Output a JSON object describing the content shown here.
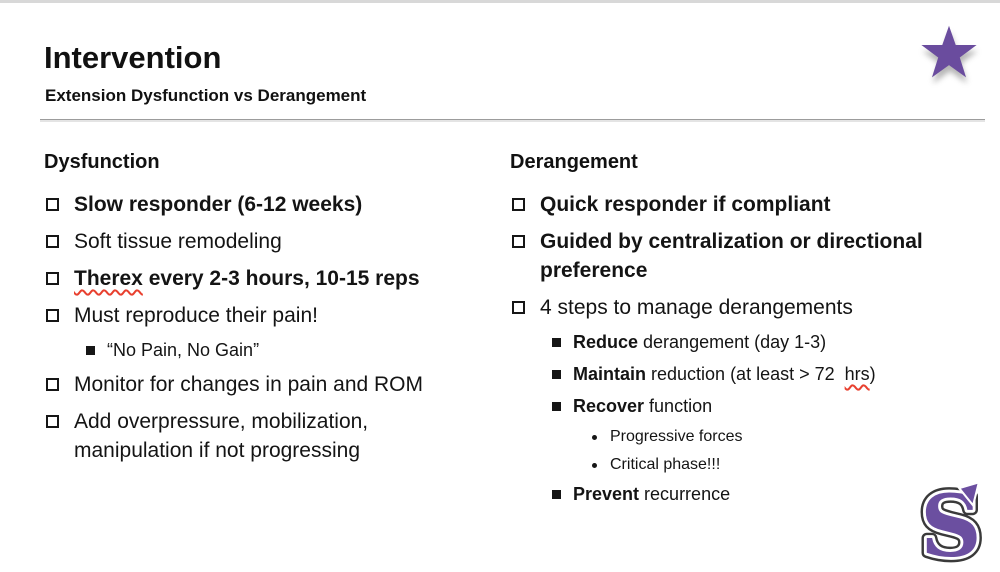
{
  "slide": {
    "title": "Intervention",
    "subtitle": "Extension Dysfunction vs Derangement"
  },
  "icons": {
    "star_icon": "five-point-star",
    "star_color": "#6a4c9e",
    "logo_letter": "S",
    "logo_fill_color": "#6b4fa0",
    "logo_outline_color": "#3a3a3a",
    "logo_inner_color": "#ffffff",
    "squiggle_color": "#e8402f"
  },
  "columns": [
    {
      "heading": "Dysfunction",
      "items": [
        {
          "level": 1,
          "segments": [
            {
              "text": "Slow responder (6-12 weeks)",
              "bold": true
            }
          ]
        },
        {
          "level": 1,
          "segments": [
            {
              "text": "Soft tissue remodeling"
            }
          ]
        },
        {
          "level": 1,
          "segments": [
            {
              "text": "Therex",
              "bold": true,
              "squiggle": true
            },
            {
              "text": " every 2-3 hours, 10-15 reps",
              "bold": true
            }
          ]
        },
        {
          "level": 1,
          "segments": [
            {
              "text": "Must reproduce their pain!"
            }
          ]
        },
        {
          "level": 2,
          "segments": [
            {
              "text": "“No Pain, No Gain”"
            }
          ]
        },
        {
          "level": 1,
          "segments": [
            {
              "text": "Monitor for changes in pain and ROM"
            }
          ]
        },
        {
          "level": 1,
          "segments": [
            {
              "text": "Add overpressure, mobilization,\nmanipulation if not progressing"
            }
          ]
        }
      ]
    },
    {
      "heading": "Derangement",
      "items": [
        {
          "level": 1,
          "segments": [
            {
              "text": "Quick responder if compliant",
              "bold": true
            }
          ]
        },
        {
          "level": 1,
          "segments": [
            {
              "text": "Guided by centralization or directional\npreference",
              "bold": true
            }
          ]
        },
        {
          "level": 1,
          "segments": [
            {
              "text": "4 steps to manage derangements"
            }
          ]
        },
        {
          "level": 2,
          "segments": [
            {
              "text": "Reduce",
              "bold": true
            },
            {
              "text": " derangement (day 1-3)"
            }
          ]
        },
        {
          "level": 2,
          "segments": [
            {
              "text": "Maintain",
              "bold": true
            },
            {
              "text": " reduction (at least > 72  "
            },
            {
              "text": "hrs",
              "squiggle": true
            },
            {
              "text": ")"
            }
          ]
        },
        {
          "level": 2,
          "segments": [
            {
              "text": "Recover",
              "bold": true
            },
            {
              "text": " function"
            }
          ]
        },
        {
          "level": 3,
          "segments": [
            {
              "text": "Progressive forces"
            }
          ]
        },
        {
          "level": 3,
          "segments": [
            {
              "text": "Critical phase!!!"
            }
          ]
        },
        {
          "level": 2,
          "segments": [
            {
              "text": "Prevent",
              "bold": true
            },
            {
              "text": " recurrence"
            }
          ]
        }
      ]
    }
  ]
}
